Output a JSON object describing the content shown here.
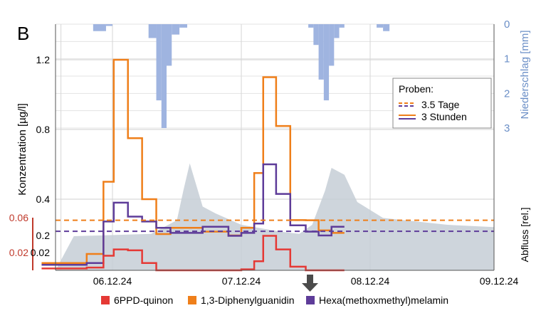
{
  "panel_letter": "B",
  "chart_data": {
    "type": "line",
    "xlabel": "",
    "ylabel": "Konzentration [µg/l]",
    "y2label": "Niederschlag [mm]",
    "y3label": "Abfluss [rel.]",
    "x_ticks": [
      "06.12.24",
      "07.12.24",
      "08.12.24",
      "09.12.24"
    ],
    "y_ticks_upper": [
      "1.2",
      "0.8",
      "0.4",
      "0.2",
      "0.02"
    ],
    "y_ticks_red": [
      "0.06",
      "0.02"
    ],
    "y2_ticks": [
      "0",
      "1",
      "2",
      "3"
    ],
    "y2_range": [
      0,
      3
    ],
    "grid": true,
    "legend": {
      "title": "Proben:",
      "entries": [
        "3.5 Tage",
        "3 Stunden"
      ],
      "placement": "top-right"
    },
    "bottom_legend": [
      "6PPD-quinon",
      "1,3-Diphenylguanidin",
      "Hexa(methoxmethyl)melamin"
    ],
    "colors": {
      "6PPD-quinon": "#e53935",
      "1,3-Diphenylguanidin": "#ef7f1a",
      "Hexa(methoxmethyl)melamin": "#5e3c99",
      "Niederschlag": "#9fb4e0",
      "Abfluss": "#c5ced6",
      "Red axis": "#c0392b"
    },
    "series": [
      {
        "name": "1,3-Diphenylguanidin",
        "values": [
          [
            0.0,
            0.01
          ],
          [
            0.35,
            0.02
          ],
          [
            0.48,
            0.5
          ],
          [
            0.56,
            1.2
          ],
          [
            0.67,
            0.75
          ],
          [
            0.78,
            0.4
          ],
          [
            0.89,
            0.2
          ],
          [
            1.0,
            0.12
          ],
          [
            1.25,
            0.09
          ],
          [
            1.45,
            0.06
          ],
          [
            1.55,
            0.12
          ],
          [
            1.65,
            0.55
          ],
          [
            1.72,
            1.1
          ],
          [
            1.82,
            0.82
          ],
          [
            1.93,
            0.28
          ],
          [
            2.05,
            0.18
          ],
          [
            2.15,
            0.1
          ],
          [
            2.25,
            0.08
          ],
          [
            2.35,
            0.08
          ]
        ]
      },
      {
        "name": "Hexa(methoxmethyl)melamin",
        "values": [
          [
            0.0,
            0.008
          ],
          [
            0.35,
            0.01
          ],
          [
            0.48,
            0.17
          ],
          [
            0.56,
            0.38
          ],
          [
            0.67,
            0.3
          ],
          [
            0.78,
            0.17
          ],
          [
            0.89,
            0.12
          ],
          [
            1.0,
            0.08
          ],
          [
            1.25,
            0.05
          ],
          [
            1.45,
            0.04
          ],
          [
            1.55,
            0.08
          ],
          [
            1.65,
            0.26
          ],
          [
            1.72,
            0.6
          ],
          [
            1.82,
            0.43
          ],
          [
            1.93,
            0.14
          ],
          [
            2.05,
            0.09
          ],
          [
            2.15,
            0.06
          ],
          [
            2.25,
            0.05
          ],
          [
            2.35,
            0.05
          ]
        ]
      },
      {
        "name": "6PPD-quinon",
        "values": [
          [
            0.0,
            0.004
          ],
          [
            0.35,
            0.005
          ],
          [
            0.48,
            0.018
          ],
          [
            0.56,
            0.025
          ],
          [
            0.67,
            0.024
          ],
          [
            0.78,
            0.01
          ],
          [
            0.89,
            0.002
          ],
          [
            1.0,
            0.002
          ],
          [
            1.25,
            0.002
          ],
          [
            1.45,
            0.002
          ],
          [
            1.55,
            0.003
          ],
          [
            1.65,
            0.012
          ],
          [
            1.72,
            0.04
          ],
          [
            1.82,
            0.025
          ],
          [
            1.93,
            0.006
          ],
          [
            2.05,
            0.002
          ],
          [
            2.15,
            0.002
          ],
          [
            2.25,
            0.002
          ],
          [
            2.35,
            0.002
          ]
        ]
      }
    ],
    "averages_3_5_tage": {
      "1,3-Diphenylguanidin": 0.18,
      "Hexa(methoxmethyl)melamin": 0.045
    },
    "precipitation_mm": [
      [
        -0.3,
        0
      ],
      [
        -0.15,
        0.2
      ],
      [
        -0.05,
        0.05
      ],
      [
        0.0,
        0
      ],
      [
        0.28,
        0.4
      ],
      [
        0.34,
        2.2
      ],
      [
        0.38,
        3.0
      ],
      [
        0.42,
        1.2
      ],
      [
        0.46,
        0.3
      ],
      [
        0.52,
        0.1
      ],
      [
        0.58,
        0
      ],
      [
        1.52,
        0.1
      ],
      [
        1.56,
        0.6
      ],
      [
        1.6,
        1.6
      ],
      [
        1.64,
        2.2
      ],
      [
        1.68,
        1.2
      ],
      [
        1.72,
        0.4
      ],
      [
        1.76,
        0.1
      ],
      [
        1.8,
        0
      ],
      [
        2.05,
        0.1
      ],
      [
        2.1,
        0.2
      ],
      [
        2.15,
        0
      ],
      [
        3.0,
        0.2
      ],
      [
        3.05,
        0.1
      ]
    ],
    "discharge_rel": [
      [
        -0.3,
        0.15
      ],
      [
        0.3,
        0.16
      ],
      [
        0.5,
        0.22
      ],
      [
        0.55,
        0.35
      ],
      [
        0.6,
        0.47
      ],
      [
        0.7,
        0.28
      ],
      [
        0.8,
        0.25
      ],
      [
        1.0,
        0.2
      ],
      [
        1.3,
        0.17
      ],
      [
        1.45,
        0.16
      ],
      [
        1.55,
        0.2
      ],
      [
        1.65,
        0.35
      ],
      [
        1.7,
        0.45
      ],
      [
        1.8,
        0.42
      ],
      [
        1.9,
        0.3
      ],
      [
        2.1,
        0.23
      ],
      [
        2.6,
        0.2
      ],
      [
        2.97,
        0.19
      ]
    ]
  }
}
